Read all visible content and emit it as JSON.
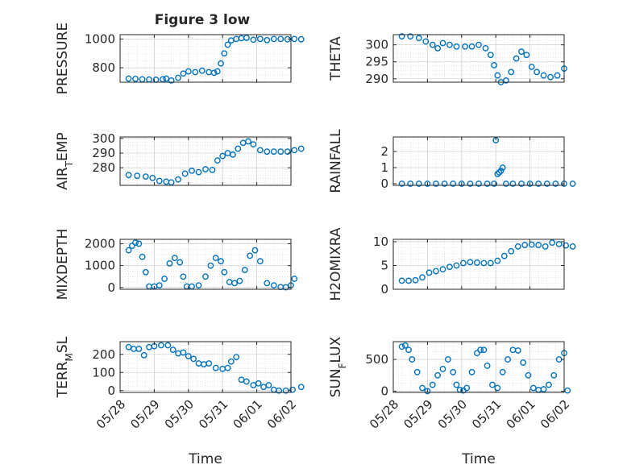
{
  "title": "Figure 3 low",
  "xlabel": "Time",
  "colors": {
    "marker": "#0072BD",
    "axis": "#262626",
    "grid": "#D3D3D3"
  },
  "chart_data": [
    {
      "type": "scatter",
      "ylabel": "PRESSURE",
      "ylim": [
        700,
        1030
      ],
      "yticks": [
        800,
        1000
      ],
      "xlim": [
        "05/28",
        "06/02"
      ],
      "xticks": [],
      "x": [
        0.25,
        0.45,
        0.65,
        0.85,
        1.05,
        1.25,
        1.35,
        1.5,
        1.7,
        1.85,
        2.0,
        2.2,
        2.4,
        2.6,
        2.75,
        2.85,
        2.95,
        3.05,
        3.15,
        3.25,
        3.4,
        3.55,
        3.7,
        3.9,
        4.1,
        4.3,
        4.5,
        4.7,
        4.9,
        5.1,
        5.3
      ],
      "y": [
        725,
        723,
        720,
        719,
        717,
        720,
        725,
        712,
        730,
        760,
        775,
        770,
        780,
        770,
        765,
        775,
        830,
        900,
        960,
        990,
        1000,
        1005,
        1008,
        995,
        1000,
        992,
        1000,
        1000,
        998,
        1000,
        998
      ]
    },
    {
      "type": "scatter",
      "ylabel": "THETA",
      "ylim": [
        289,
        303
      ],
      "yticks": [
        290,
        295,
        300
      ],
      "xlim": [
        "05/28",
        "06/02"
      ],
      "xticks": [],
      "x": [
        0.25,
        0.5,
        0.75,
        0.95,
        1.15,
        1.3,
        1.45,
        1.65,
        1.85,
        2.1,
        2.3,
        2.5,
        2.7,
        2.85,
        2.95,
        3.05,
        3.15,
        3.3,
        3.45,
        3.6,
        3.75,
        3.9,
        4.05,
        4.2,
        4.4,
        4.6,
        4.8,
        5.0
      ],
      "y": [
        302.5,
        302.5,
        302,
        301,
        300,
        299,
        300.5,
        300,
        299.5,
        299.5,
        299.5,
        300,
        299,
        297,
        294,
        291,
        289,
        289.5,
        292,
        296,
        298,
        297,
        293.5,
        292,
        291,
        290.5,
        291,
        293
      ]
    },
    {
      "type": "scatter",
      "ylabel": "AIR_TEMP",
      "ylim": [
        268,
        301
      ],
      "yticks": [
        280,
        290,
        300
      ],
      "xlim": [
        "05/28",
        "06/02"
      ],
      "xticks": [],
      "x": [
        0.25,
        0.5,
        0.75,
        0.95,
        1.15,
        1.35,
        1.5,
        1.7,
        1.9,
        2.1,
        2.3,
        2.5,
        2.7,
        2.85,
        3.0,
        3.15,
        3.3,
        3.45,
        3.6,
        3.75,
        3.9,
        4.1,
        4.3,
        4.5,
        4.7,
        4.9,
        5.1,
        5.3
      ],
      "y": [
        275,
        274.5,
        274,
        273,
        271,
        270.5,
        270,
        272,
        276,
        278,
        277,
        279,
        278.5,
        285,
        288,
        290,
        289,
        293,
        297,
        298,
        296,
        292,
        291,
        291,
        291,
        291,
        292,
        293
      ]
    },
    {
      "type": "scatter",
      "ylabel": "RAINFALL",
      "ylim": [
        -0.1,
        2.9
      ],
      "yticks": [
        0,
        1,
        2
      ],
      "xlim": [
        "05/28",
        "06/02"
      ],
      "xticks": [],
      "x": [
        0.25,
        0.5,
        0.75,
        1.0,
        1.25,
        1.5,
        1.75,
        2.0,
        2.25,
        2.5,
        2.75,
        2.95,
        3.0,
        3.05,
        3.1,
        3.15,
        3.2,
        3.3,
        3.5,
        3.75,
        4.0,
        4.25,
        4.5,
        4.75,
        5.0,
        5.25
      ],
      "y": [
        0,
        0,
        0,
        0,
        0,
        0,
        0,
        0,
        0,
        0,
        0,
        0,
        2.7,
        0.6,
        0.7,
        0.8,
        1.0,
        0,
        0,
        0,
        0,
        0,
        0,
        0,
        0,
        0
      ]
    },
    {
      "type": "scatter",
      "ylabel": "MIXDEPTH",
      "ylim": [
        -80,
        2200
      ],
      "yticks": [
        0,
        1000,
        2000
      ],
      "xlim": [
        "05/28",
        "06/02"
      ],
      "xticks": [],
      "x": [
        0.25,
        0.35,
        0.45,
        0.55,
        0.65,
        0.75,
        0.85,
        1.0,
        1.15,
        1.3,
        1.45,
        1.6,
        1.75,
        1.85,
        1.95,
        2.1,
        2.3,
        2.5,
        2.65,
        2.8,
        2.95,
        3.05,
        3.2,
        3.35,
        3.5,
        3.65,
        3.8,
        3.95,
        4.1,
        4.3,
        4.5,
        4.7,
        4.85,
        5.0,
        5.1
      ],
      "y": [
        1700,
        1900,
        2050,
        2000,
        1400,
        700,
        50,
        50,
        100,
        400,
        1100,
        1350,
        1150,
        500,
        50,
        50,
        100,
        500,
        1000,
        1350,
        1200,
        700,
        250,
        200,
        300,
        800,
        1450,
        1700,
        1200,
        200,
        100,
        20,
        10,
        100,
        400
      ]
    },
    {
      "type": "scatter",
      "ylabel": "H2OMIXRA",
      "ylim": [
        0,
        10.5
      ],
      "yticks": [
        0,
        5,
        10
      ],
      "xlim": [
        "05/28",
        "06/02"
      ],
      "xticks": [],
      "x": [
        0.25,
        0.45,
        0.65,
        0.85,
        1.05,
        1.25,
        1.45,
        1.65,
        1.85,
        2.05,
        2.25,
        2.45,
        2.65,
        2.85,
        3.05,
        3.25,
        3.45,
        3.65,
        3.85,
        4.05,
        4.25,
        4.45,
        4.65,
        4.85,
        5.05,
        5.25
      ],
      "y": [
        1.8,
        1.8,
        1.9,
        2.5,
        3.5,
        3.8,
        4.2,
        4.7,
        5.0,
        5.5,
        5.7,
        5.6,
        5.5,
        5.5,
        6.0,
        7.0,
        8.0,
        9.0,
        9.3,
        9.4,
        9.3,
        9.0,
        9.8,
        9.5,
        9.2,
        9.0
      ]
    },
    {
      "type": "scatter",
      "ylabel": "TERR_MSL",
      "ylim": [
        -10,
        270
      ],
      "yticks": [
        0,
        100,
        200
      ],
      "xlim": [
        "05/28",
        "06/02"
      ],
      "xticks": [
        "05/28",
        "05/29",
        "05/30",
        "05/31",
        "06/01",
        "06/02"
      ],
      "x": [
        0.25,
        0.4,
        0.55,
        0.7,
        0.85,
        1.0,
        1.2,
        1.4,
        1.55,
        1.7,
        1.85,
        2.0,
        2.15,
        2.3,
        2.45,
        2.6,
        2.8,
        3.0,
        3.15,
        3.25,
        3.4,
        3.55,
        3.7,
        3.9,
        4.05,
        4.2,
        4.35,
        4.5,
        4.65,
        4.85,
        5.05,
        5.3
      ],
      "y": [
        240,
        230,
        230,
        195,
        240,
        245,
        250,
        250,
        225,
        205,
        210,
        190,
        175,
        150,
        145,
        150,
        125,
        120,
        125,
        160,
        185,
        60,
        50,
        30,
        40,
        20,
        30,
        5,
        0,
        0,
        5,
        20
      ]
    },
    {
      "type": "scatter",
      "ylabel": "SUN_FLUX",
      "ylim": [
        -20,
        780
      ],
      "yticks": [
        0,
        500
      ],
      "xlim": [
        "05/28",
        "06/02"
      ],
      "xticks": [
        "05/28",
        "05/29",
        "05/30",
        "05/31",
        "06/01",
        "06/02"
      ],
      "x": [
        0.25,
        0.35,
        0.45,
        0.55,
        0.7,
        0.85,
        1.0,
        1.15,
        1.3,
        1.45,
        1.6,
        1.75,
        1.85,
        1.95,
        2.05,
        2.15,
        2.3,
        2.45,
        2.55,
        2.65,
        2.75,
        2.9,
        3.05,
        3.2,
        3.35,
        3.5,
        3.65,
        3.8,
        3.95,
        4.1,
        4.25,
        4.4,
        4.55,
        4.7,
        4.85,
        5.0,
        5.1
      ],
      "y": [
        700,
        720,
        650,
        500,
        300,
        50,
        0,
        100,
        250,
        350,
        500,
        300,
        100,
        20,
        10,
        50,
        300,
        600,
        650,
        650,
        400,
        100,
        50,
        300,
        500,
        650,
        640,
        450,
        250,
        50,
        20,
        30,
        100,
        250,
        500,
        600,
        10
      ]
    }
  ]
}
